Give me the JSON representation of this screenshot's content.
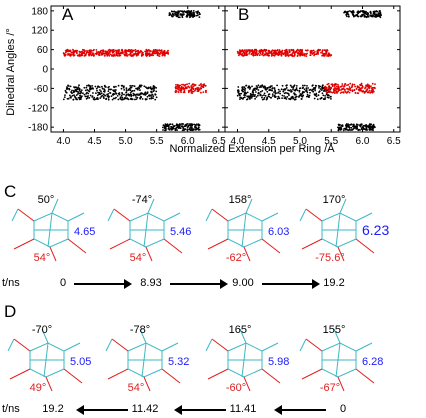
{
  "chart_data": {
    "type": "scatter",
    "ylabel": "Dihedral Angles /°",
    "xlabel": "Normalized Extension per Ring /Å",
    "xlim": [
      3.8,
      6.6
    ],
    "ylim": [
      -195,
      195
    ],
    "xticks": [
      "4.0",
      "4.5",
      "5.0",
      "5.5",
      "6.0",
      "6.5"
    ],
    "yticks": [
      "180",
      "120",
      "60",
      "0",
      "-60",
      "-120",
      "-180"
    ],
    "colors": {
      "black_series": "#000000",
      "red_series": "#e00000"
    },
    "panels": [
      {
        "label": "A",
        "clusters": [
          {
            "color": "black",
            "x": [
              5.7,
              6.2
            ],
            "y": [
              160,
              180
            ]
          },
          {
            "color": "red",
            "x": [
              4.0,
              5.5
            ],
            "y": [
              40,
              60
            ]
          },
          {
            "color": "red",
            "x": [
              5.5,
              5.7
            ],
            "y": [
              40,
              60
            ]
          },
          {
            "color": "black",
            "x": [
              4.0,
              5.5
            ],
            "y": [
              -95,
              -50
            ]
          },
          {
            "color": "red",
            "x": [
              5.8,
              6.3
            ],
            "y": [
              -75,
              -45
            ]
          },
          {
            "color": "black",
            "x": [
              5.6,
              6.2
            ],
            "y": [
              -190,
              -170
            ]
          }
        ]
      },
      {
        "label": "B",
        "clusters": [
          {
            "color": "black",
            "x": [
              5.7,
              6.3
            ],
            "y": [
              160,
              180
            ]
          },
          {
            "color": "red",
            "x": [
              4.0,
              5.5
            ],
            "y": [
              40,
              60
            ]
          },
          {
            "color": "black",
            "x": [
              4.0,
              5.5
            ],
            "y": [
              -95,
              -50
            ]
          },
          {
            "color": "red",
            "x": [
              5.4,
              6.2
            ],
            "y": [
              -75,
              -45
            ]
          },
          {
            "color": "black",
            "x": [
              5.6,
              6.2
            ],
            "y": [
              -190,
              -170
            ]
          }
        ]
      }
    ]
  },
  "panel_c": {
    "label": "C",
    "row_label": "t/ns",
    "frames": [
      {
        "top": "50°",
        "bottom": "54°",
        "right": "4.65",
        "time": "0"
      },
      {
        "top": "-74°",
        "bottom": "54°",
        "right": "5.46",
        "time": "8.93"
      },
      {
        "top": "158°",
        "bottom": "-62°",
        "right": "6.03",
        "time": "9.00"
      },
      {
        "top": "170°",
        "bottom": "-75.6°",
        "right": "6.23",
        "time": "19.2"
      }
    ]
  },
  "panel_d": {
    "label": "D",
    "row_label": "t/ns",
    "frames": [
      {
        "top": "-70°",
        "bottom": "49°",
        "right": "5.05",
        "time": "19.2"
      },
      {
        "top": "-78°",
        "bottom": "54°",
        "right": "5.32",
        "time": "11.42"
      },
      {
        "top": "165°",
        "bottom": "-60°",
        "right": "5.98",
        "time": "11.41"
      },
      {
        "top": "155°",
        "bottom": "-67°",
        "right": "6.28",
        "time": "0"
      }
    ]
  }
}
